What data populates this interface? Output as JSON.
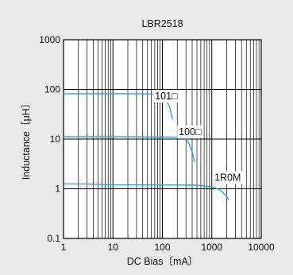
{
  "chart_data": {
    "type": "line",
    "title": "LBR2518",
    "xlabel": "DC Bias〔mA〕",
    "ylabel": "Inductance〔μH〕",
    "x_scale": "log",
    "y_scale": "log",
    "xlim": [
      1,
      10000
    ],
    "ylim": [
      0.1,
      1000
    ],
    "x_ticks": [
      1,
      10,
      100,
      1000,
      10000
    ],
    "x_tick_labels": [
      "1",
      "10",
      "100",
      "1000",
      "10000"
    ],
    "y_ticks": [
      0.1,
      1,
      10,
      100,
      1000
    ],
    "y_tick_labels": [
      "0.1",
      "1",
      "10",
      "100",
      "1000"
    ],
    "grid": true,
    "line_color": "#3a9fcf",
    "series": [
      {
        "name": "101□",
        "x": [
          1,
          10,
          30,
          60,
          80,
          100,
          120,
          140,
          160
        ],
        "y": [
          82,
          82,
          82,
          81,
          78,
          72,
          60,
          45,
          25
        ]
      },
      {
        "name": "100□",
        "x": [
          1,
          10,
          50,
          150,
          250,
          300,
          350,
          400,
          450
        ],
        "y": [
          11.2,
          11.2,
          11.1,
          11,
          10.8,
          10,
          8,
          5.5,
          3.5
        ]
      },
      {
        "name": "1R0M",
        "x": [
          1,
          3,
          10,
          100,
          500,
          1000,
          1300,
          1600,
          1900,
          2200
        ],
        "y": [
          1.25,
          1.25,
          1.2,
          1.2,
          1.18,
          1.1,
          1.0,
          0.88,
          0.74,
          0.6
        ]
      }
    ]
  }
}
